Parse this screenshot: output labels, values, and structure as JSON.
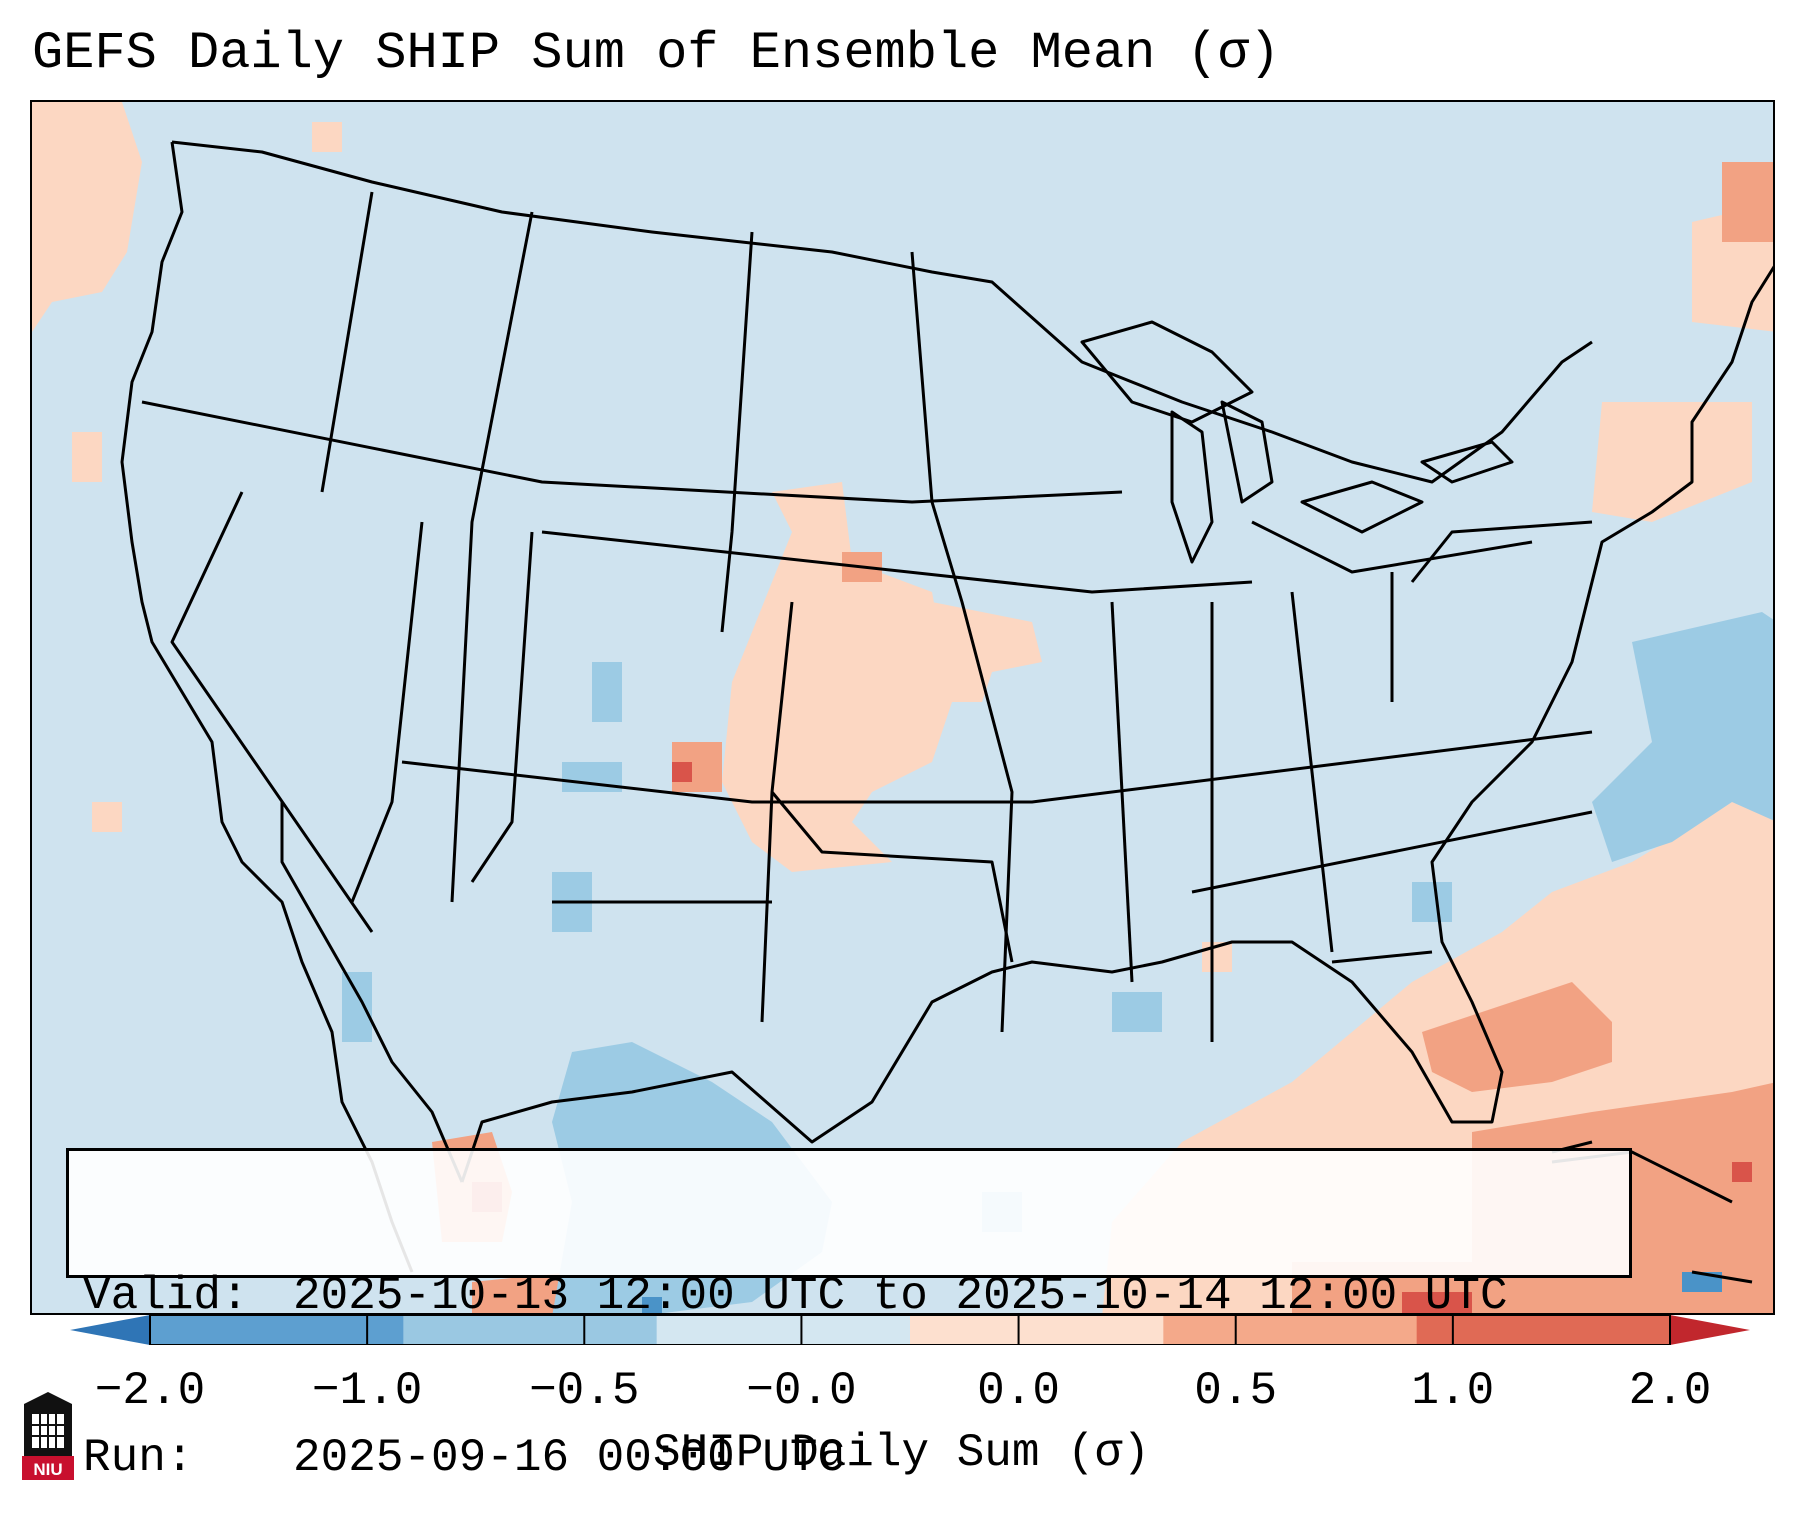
{
  "title": "GEFS Daily SHIP Sum of Ensemble Mean (σ)",
  "info": {
    "valid_label": "Valid:",
    "valid_value": "2025-10-13 12:00 UTC to 2025-10-14 12:00 UTC",
    "run_label": "Run:",
    "run_value": "2025-09-16 00:00 UTC"
  },
  "colorbar": {
    "label": "SHIP Daily Sum (σ)",
    "ticks": [
      "−2.0",
      "−1.0",
      "−0.5",
      "−0.0",
      "0.0",
      "0.5",
      "1.0",
      "2.0"
    ],
    "colors": [
      "#2f75b6",
      "#5d9fd0",
      "#9ac8e2",
      "#d4e7f1",
      "#fde0cf",
      "#f4a98a",
      "#e06a55",
      "#c1272d"
    ]
  },
  "logo": {
    "text": "NIU",
    "color": "#c8102e",
    "icon": "university-tower-icon"
  },
  "legend_colors": {
    "background": "#cfe3ef",
    "light_orange": "#fcd7c2",
    "orange": "#f2a283",
    "red": "#d9544a",
    "light_blue": "#9ccbe4",
    "blue": "#4a93c8"
  }
}
